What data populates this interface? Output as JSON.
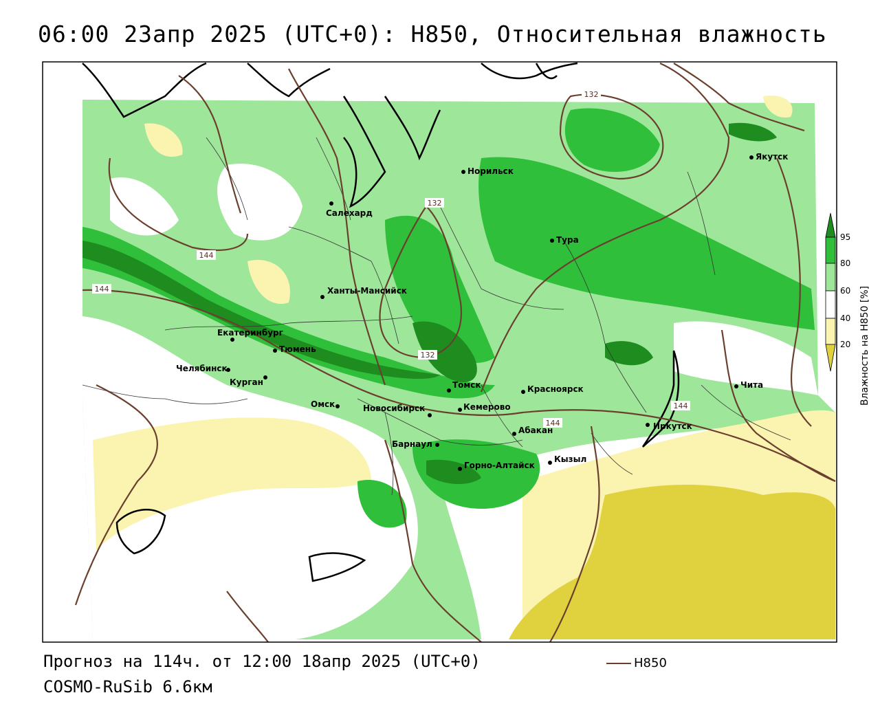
{
  "title": "06:00 23апр 2025 (UTC+0): H850, Относительная влажность",
  "footer": {
    "forecast": "Прогноз на 114ч. от 12:00 18апр 2025 (UTC+0)",
    "model": "COSMO-RuSib 6.6км"
  },
  "legend": {
    "line_label": "H850",
    "line_color": "#6b3f2e"
  },
  "colorbar": {
    "title": "Влажность на H850 [%]",
    "ticks": [
      "95",
      "80",
      "60",
      "40",
      "20"
    ],
    "colors": {
      "above_95": "#1e8c1e",
      "80_95": "#2fbf3a",
      "60_80": "#9ee69a",
      "40_60": "#ffffff",
      "20_40": "#fbf3b0",
      "below_20": "#e0d23e"
    }
  },
  "cities": [
    {
      "name": "Норильск"
    },
    {
      "name": "Якутск"
    },
    {
      "name": "Салехард"
    },
    {
      "name": "Тура"
    },
    {
      "name": "Ханты-Мансийск"
    },
    {
      "name": "Екатеринбург"
    },
    {
      "name": "Тюмень"
    },
    {
      "name": "Челябинск"
    },
    {
      "name": "Курган"
    },
    {
      "name": "Омск"
    },
    {
      "name": "Новосибирск"
    },
    {
      "name": "Томск"
    },
    {
      "name": "Кемерово"
    },
    {
      "name": "Красноярск"
    },
    {
      "name": "Барнаул"
    },
    {
      "name": "Абакан"
    },
    {
      "name": "Горно-Алтайск"
    },
    {
      "name": "Кызыл"
    },
    {
      "name": "Иркутск"
    },
    {
      "name": "Чита"
    }
  ],
  "isoline_labels": [
    "132",
    "132",
    "132",
    "144",
    "144",
    "144",
    "144"
  ]
}
